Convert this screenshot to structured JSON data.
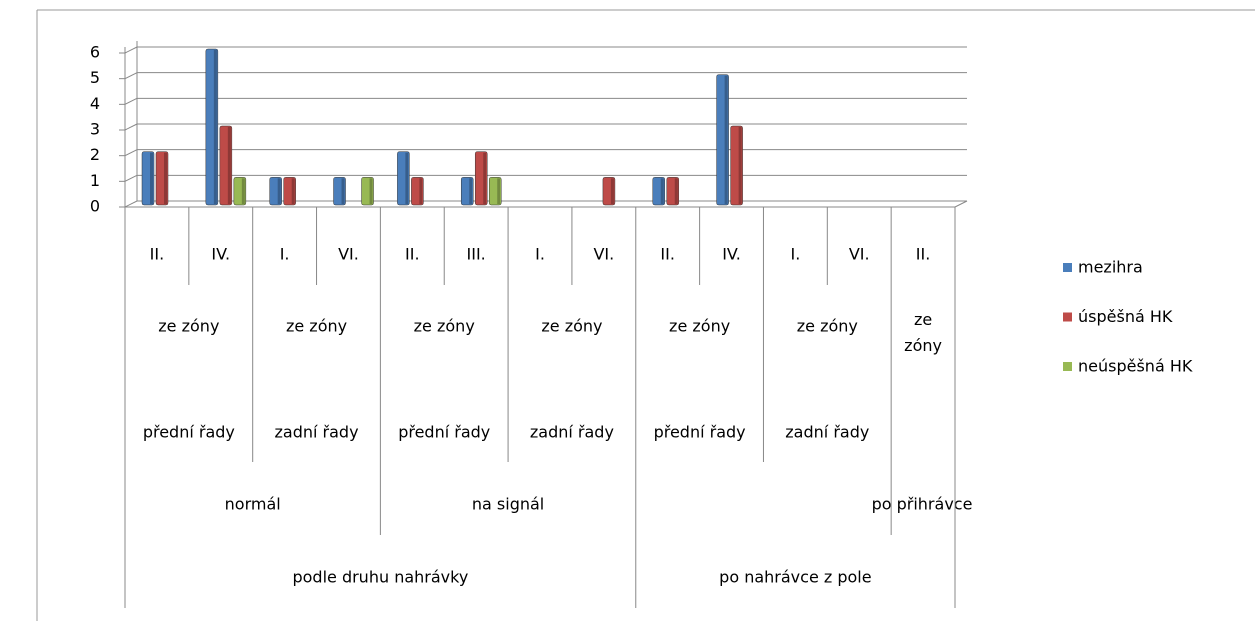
{
  "chart_data": {
    "type": "bar",
    "categories": [
      "II.",
      "IV.",
      "I.",
      "VI.",
      "II.",
      "III.",
      "I.",
      "VI.",
      "II.",
      "IV.",
      "I.",
      "VI.",
      "II."
    ],
    "category_levels": [
      [
        "ze zóny",
        "ze zóny",
        "ze zóny",
        "ze zóny",
        "ze zóny",
        "ze zóny",
        "ze zóny"
      ],
      [
        "přední řady",
        "zadní řady",
        "přední řady",
        "zadní řady",
        "přední řady",
        "zadní řady"
      ],
      [
        "normál",
        "na signál",
        "po přihrávce"
      ],
      [
        "podle druhu nahrávky",
        "po nahrávce z pole"
      ]
    ],
    "series": [
      {
        "name": "mezihra",
        "color": "#4a7ebb",
        "values": [
          2,
          6,
          1,
          1,
          2,
          1,
          null,
          null,
          1,
          5,
          null,
          null,
          null
        ]
      },
      {
        "name": "úspěšná HK",
        "color": "#be4b48",
        "values": [
          2,
          3,
          1,
          null,
          1,
          2,
          null,
          1,
          1,
          3,
          null,
          null,
          null
        ]
      },
      {
        "name": "neúspěšná HK",
        "color": "#98b954",
        "values": [
          null,
          1,
          null,
          1,
          null,
          1,
          null,
          null,
          null,
          null,
          null,
          null,
          null
        ]
      }
    ],
    "ylim": [
      0,
      6
    ],
    "yticks": [
      0,
      1,
      2,
      3,
      4,
      5,
      6
    ],
    "grid": true,
    "legend": "right"
  }
}
